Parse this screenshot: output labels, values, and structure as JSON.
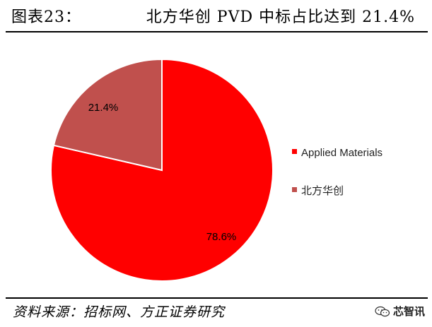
{
  "header": {
    "figure_label": "图表23：",
    "figure_title": "北方华创 PVD 中标占比达到 21.4%"
  },
  "source": "资料来源：招标网、方正证券研究",
  "watermark": {
    "text": "芯智讯",
    "icon": "wechat-icon"
  },
  "chart_data": {
    "type": "pie",
    "title": "北方华创 PVD 中标占比达到 21.4%",
    "slices": [
      {
        "name": "Applied Materials",
        "value": 78.6,
        "label": "78.6%",
        "color": "#ff0000"
      },
      {
        "name": "北方华创",
        "value": 21.4,
        "label": "21.4%",
        "color": "#c0504d"
      }
    ],
    "start_angle_deg": 0,
    "direction": "clockwise",
    "legend_position": "right"
  }
}
